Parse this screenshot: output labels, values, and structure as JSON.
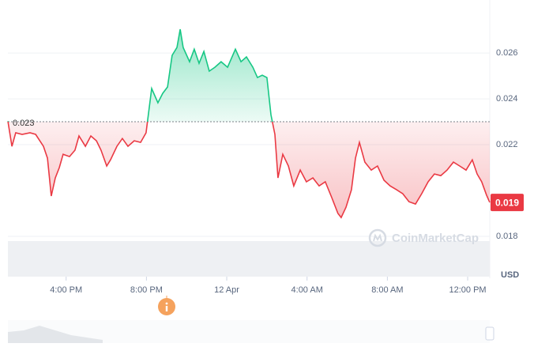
{
  "chart_data": {
    "type": "line",
    "x": [
      13.1,
      13.3,
      13.49,
      13.81,
      14.2,
      14.48,
      14.87,
      15.07,
      15.26,
      15.46,
      15.66,
      15.85,
      16.17,
      16.44,
      16.64,
      16.96,
      17.23,
      17.51,
      17.74,
      18.02,
      18.21,
      18.53,
      18.8,
      19.08,
      19.39,
      19.71,
      19.98,
      20.26,
      20.57,
      20.81,
      21.05,
      21.28,
      21.52,
      21.68,
      21.83,
      22.15,
      22.38,
      22.62,
      22.86,
      23.13,
      23.41,
      23.72,
      24.04,
      24.43,
      24.71,
      24.98,
      25.3,
      25.53,
      25.77,
      26.0,
      26.2,
      26.4,
      26.55,
      26.79,
      27.07,
      27.34,
      27.66,
      27.97,
      28.29,
      28.6,
      28.91,
      29.23,
      29.54,
      29.7,
      29.94,
      30.21,
      30.41,
      30.61,
      30.88,
      31.2,
      31.51,
      31.83,
      32.14,
      32.46,
      32.77,
      33.08,
      33.4,
      33.71,
      34.03,
      34.34,
      34.66,
      34.97,
      35.29,
      35.6,
      35.92,
      36.23,
      36.47,
      36.7,
      36.94,
      37.1
    ],
    "values": [
      0.02303,
      0.02193,
      0.02252,
      0.02245,
      0.02252,
      0.02245,
      0.02193,
      0.02141,
      0.01976,
      0.02055,
      0.021,
      0.02158,
      0.02148,
      0.02176,
      0.02238,
      0.02193,
      0.02238,
      0.02217,
      0.02176,
      0.02107,
      0.02134,
      0.02193,
      0.02227,
      0.02193,
      0.02217,
      0.0221,
      0.02252,
      0.02445,
      0.02383,
      0.02424,
      0.02452,
      0.0259,
      0.02624,
      0.02704,
      0.02624,
      0.02562,
      0.02617,
      0.02555,
      0.02607,
      0.02521,
      0.02538,
      0.02562,
      0.02538,
      0.02617,
      0.02562,
      0.02583,
      0.02538,
      0.02493,
      0.02503,
      0.02493,
      0.02331,
      0.02245,
      0.02055,
      0.02158,
      0.02107,
      0.0202,
      0.02089,
      0.02038,
      0.02055,
      0.0202,
      0.02038,
      0.01969,
      0.019,
      0.01882,
      0.01927,
      0.02003,
      0.02141,
      0.0221,
      0.02124,
      0.02089,
      0.02107,
      0.02045,
      0.0202,
      0.02003,
      0.01986,
      0.01951,
      0.01941,
      0.01986,
      0.02038,
      0.02072,
      0.02065,
      0.02089,
      0.02124,
      0.02107,
      0.02089,
      0.02134,
      0.02072,
      0.02038,
      0.0198,
      0.01948
    ],
    "up_color": "#16c784",
    "down_color": "#ea3943",
    "baseline": 0.023,
    "current_price": 0.01948,
    "current_price_label": "0.019",
    "xlim": [
      13.1,
      37.1
    ],
    "xticks": [
      {
        "value": 16,
        "label": "4:00 PM"
      },
      {
        "value": 20,
        "label": "8:00 PM"
      },
      {
        "value": 24,
        "label": "12 Apr"
      },
      {
        "value": 28,
        "label": "4:00 AM"
      },
      {
        "value": 32,
        "label": "8:00 AM"
      },
      {
        "value": 36,
        "label": "12:00 PM"
      }
    ],
    "ylim": [
      0.01624,
      0.02797
    ],
    "yticks": [
      0.018,
      0.022,
      0.024,
      0.026
    ],
    "y_label": "USD",
    "watermark": "CoinMarketCap",
    "grid": true
  }
}
